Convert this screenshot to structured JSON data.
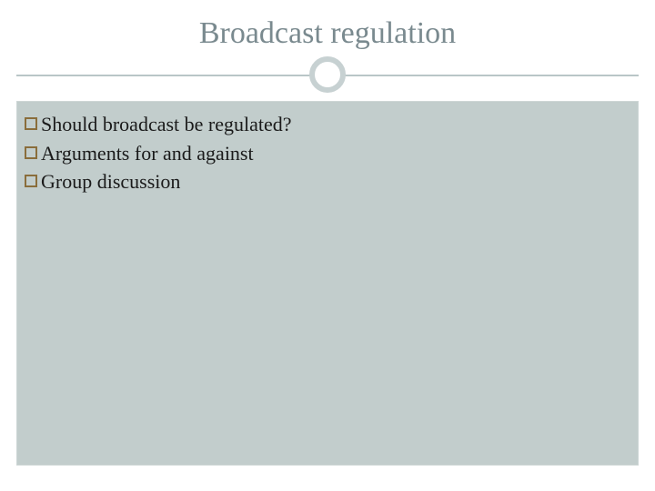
{
  "slide": {
    "title": "Broadcast regulation",
    "title_color": "#7a8a8f",
    "title_fontsize": 34,
    "divider_color": "#b9c6c7",
    "circle_border_color": "#c7d1d2",
    "content_background": "#c2cdcc",
    "bullet_border_color": "#8a6d3b",
    "text_color": "#1a1a1a",
    "bullets": [
      {
        "text": "Should broadcast be regulated?"
      },
      {
        "text": "Arguments for and against"
      },
      {
        "text": "Group discussion"
      }
    ]
  }
}
